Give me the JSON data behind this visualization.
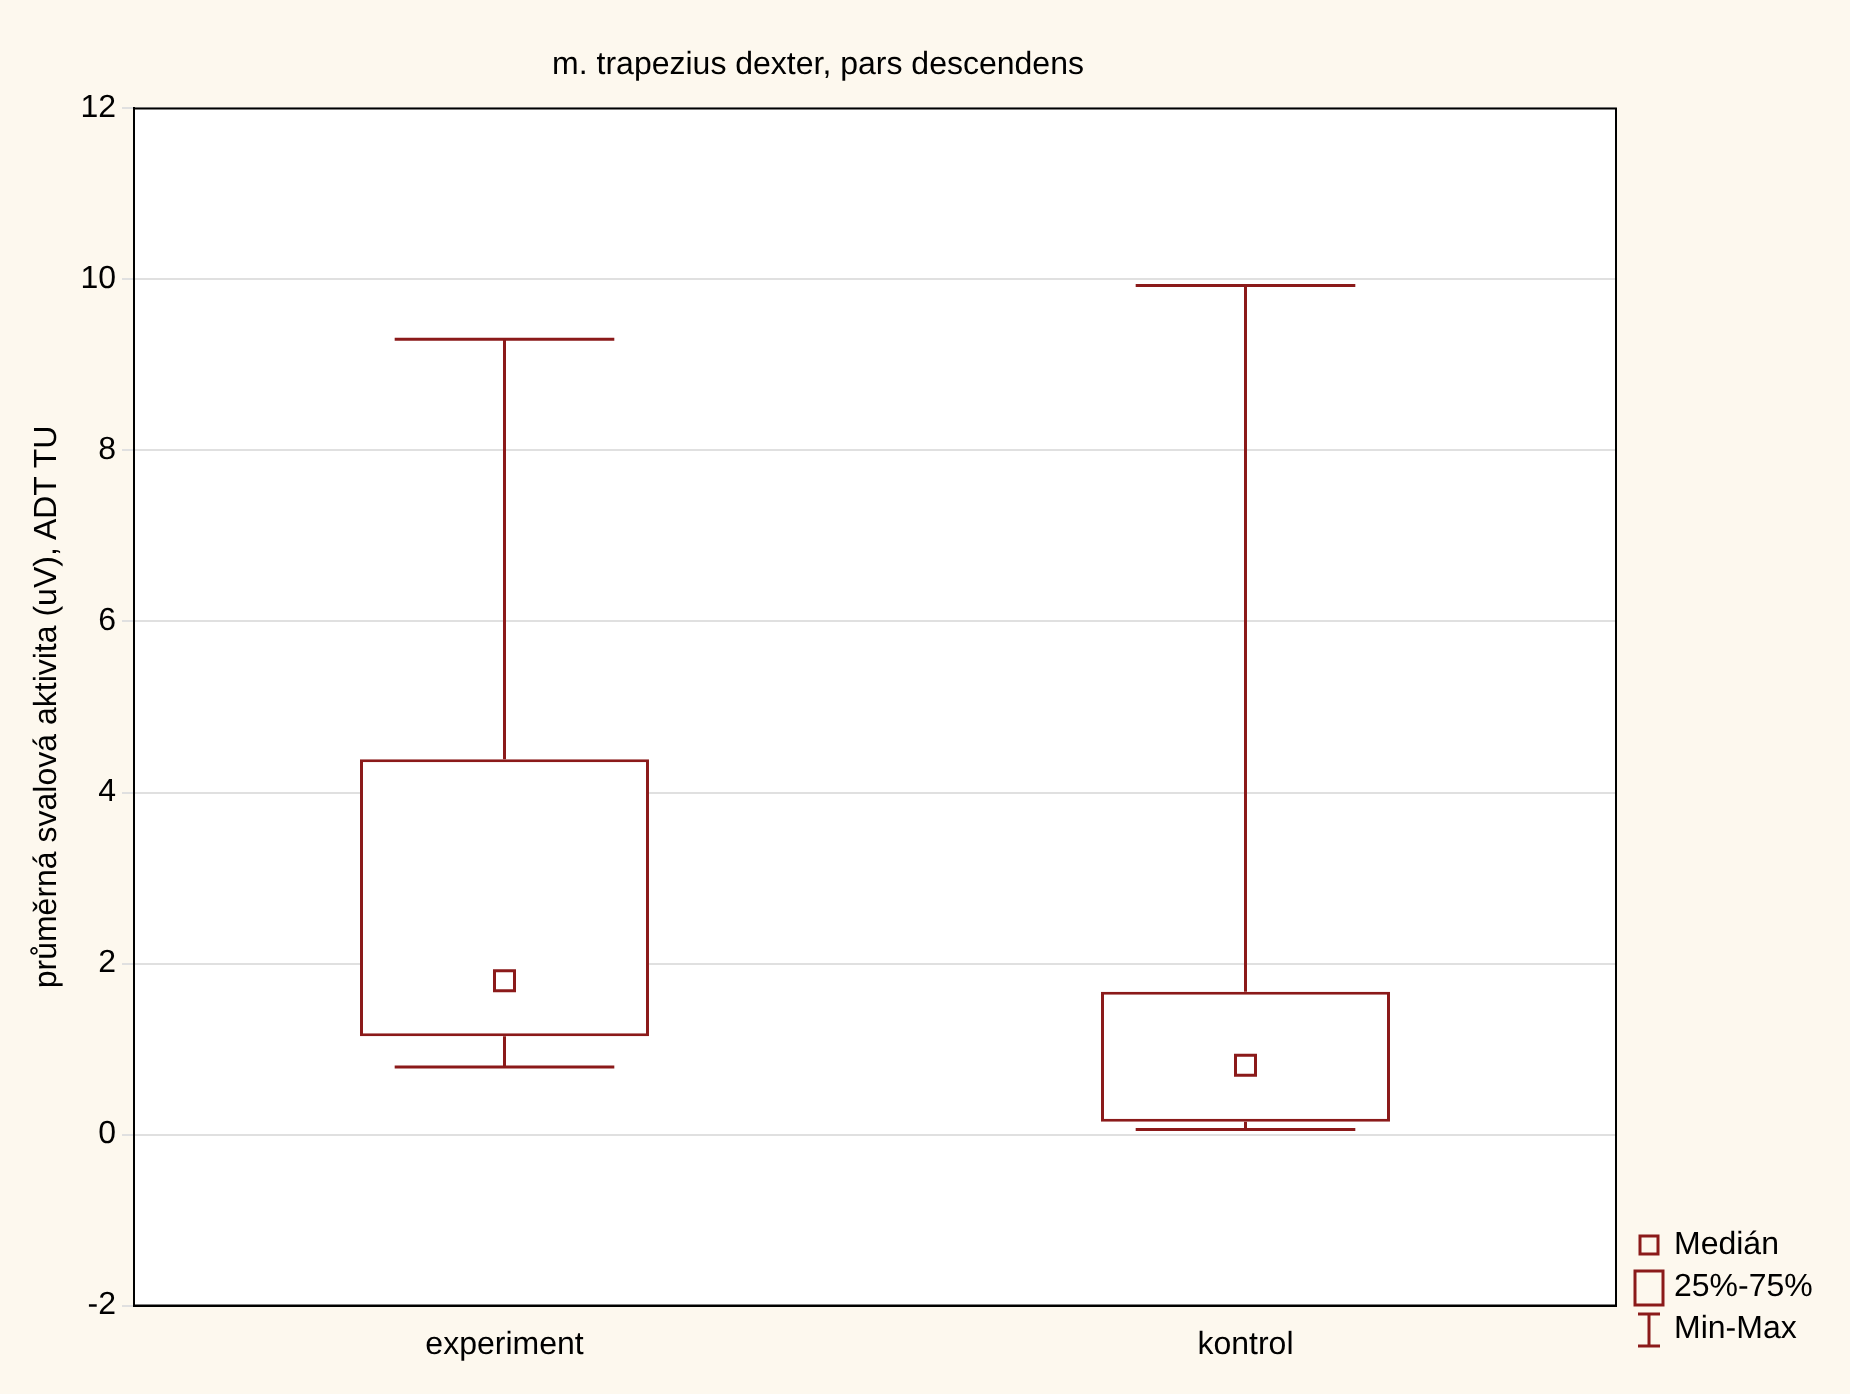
{
  "chart_data": {
    "type": "box",
    "title": "m. trapezius dexter, pars descendens",
    "ylabel": "průměrná svalová aktivita (uV), ADT TU",
    "categories": [
      "experiment",
      "kontrol"
    ],
    "boxes": [
      {
        "low": 0.79,
        "q1": 1.15,
        "median": 1.8,
        "q3": 4.39,
        "high": 9.3
      },
      {
        "low": 0.06,
        "q1": 0.15,
        "median": 0.81,
        "q3": 1.67,
        "high": 9.93
      }
    ],
    "color": "#8b1a1a",
    "ylim": [
      -2,
      12
    ],
    "yticks": [
      -2,
      0,
      2,
      4,
      6,
      8,
      10,
      12
    ],
    "grid": "y",
    "annotations": [
      "Medián",
      "25%-75%",
      "Min-Max"
    ]
  }
}
